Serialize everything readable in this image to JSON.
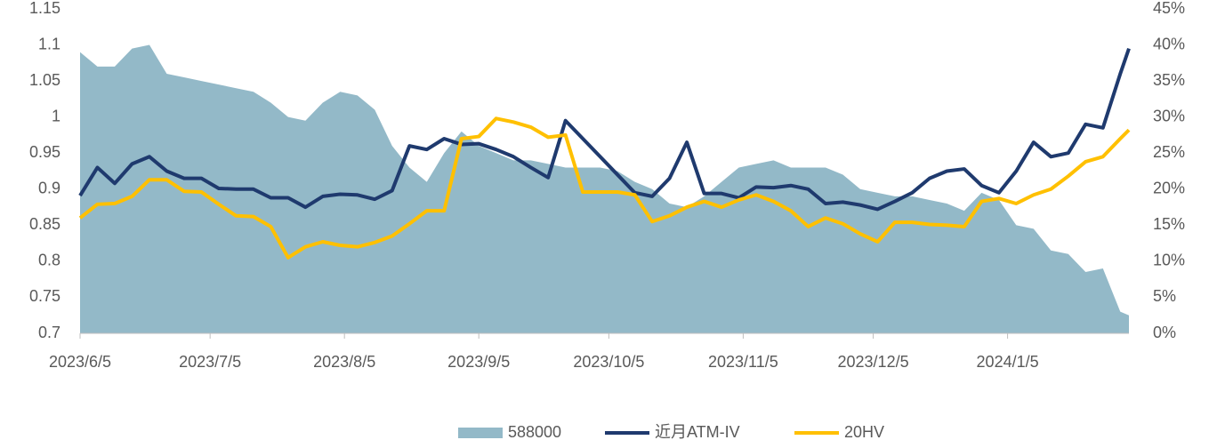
{
  "chart_data": {
    "type": "line",
    "x": [
      "2023/6/5",
      "2023/6/9",
      "2023/6/13",
      "2023/6/17",
      "2023/6/21",
      "2023/6/25",
      "2023/6/29",
      "2023/7/3",
      "2023/7/7",
      "2023/7/11",
      "2023/7/15",
      "2023/7/19",
      "2023/7/23",
      "2023/7/27",
      "2023/7/31",
      "2023/8/4",
      "2023/8/8",
      "2023/8/12",
      "2023/8/16",
      "2023/8/20",
      "2023/8/24",
      "2023/8/28",
      "2023/9/1",
      "2023/9/5",
      "2023/9/9",
      "2023/9/13",
      "2023/9/17",
      "2023/9/21",
      "2023/9/25",
      "2023/9/29",
      "2023/10/3",
      "2023/10/7",
      "2023/10/11",
      "2023/10/15",
      "2023/10/19",
      "2023/10/23",
      "2023/10/27",
      "2023/10/31",
      "2023/11/4",
      "2023/11/8",
      "2023/11/12",
      "2023/11/16",
      "2023/11/20",
      "2023/11/24",
      "2023/11/28",
      "2023/12/2",
      "2023/12/6",
      "2023/12/10",
      "2023/12/14",
      "2023/12/18",
      "2023/12/22",
      "2023/12/26",
      "2023/12/30",
      "2024/1/3",
      "2024/1/7",
      "2024/1/11",
      "2024/1/15",
      "2024/1/19",
      "2024/1/23",
      "2024/1/27",
      "2024/1/31",
      "2024/2/2"
    ],
    "series": [
      {
        "name": "588000",
        "type": "area",
        "axis": "y",
        "color": "#93b9c8",
        "values": [
          1.09,
          1.07,
          1.07,
          1.095,
          1.1,
          1.06,
          1.055,
          1.05,
          1.045,
          1.04,
          1.035,
          1.02,
          1.0,
          0.995,
          1.02,
          1.035,
          1.03,
          1.01,
          0.96,
          0.93,
          0.91,
          0.95,
          0.98,
          0.96,
          0.95,
          0.94,
          0.94,
          0.935,
          0.93,
          0.93,
          0.93,
          0.925,
          0.91,
          0.9,
          0.88,
          0.875,
          0.89,
          0.91,
          0.93,
          0.935,
          0.94,
          0.93,
          0.93,
          0.93,
          0.92,
          0.9,
          0.895,
          0.89,
          0.89,
          0.885,
          0.88,
          0.87,
          0.895,
          0.885,
          0.85,
          0.845,
          0.815,
          0.81,
          0.785,
          0.79,
          0.73,
          0.725
        ]
      },
      {
        "name": "近月ATM-IV",
        "type": "line",
        "axis": "y2",
        "color": "#1f3a6e",
        "values": [
          19.1,
          23,
          20.8,
          23.5,
          24.5,
          22.5,
          21.5,
          21.5,
          20.1,
          20,
          20,
          18.8,
          18.8,
          17.5,
          19,
          19.3,
          19.2,
          18.6,
          19.8,
          26,
          25.5,
          27,
          26.2,
          26.3,
          25.5,
          24.5,
          23,
          21.6,
          29.5,
          27,
          24.5,
          22,
          19.5,
          19,
          21.5,
          26.5,
          19.4,
          19.4,
          18.8,
          20.3,
          20.2,
          20.5,
          20,
          18,
          18.2,
          17.8,
          17.2,
          18.3,
          19.5,
          21.5,
          22.5,
          22.8,
          20.5,
          19.5,
          22.5,
          26.5,
          24.5,
          25,
          29,
          28.5,
          36,
          39.5
        ]
      },
      {
        "name": "20HV",
        "type": "line",
        "axis": "y2",
        "color": "#ffc000",
        "values": [
          16,
          17.9,
          18,
          19,
          21.3,
          21.3,
          19.7,
          19.6,
          17.9,
          16.3,
          16.2,
          14.8,
          10.5,
          12,
          12.7,
          12.2,
          12,
          12.6,
          13.5,
          15.2,
          17,
          17,
          27,
          27.3,
          29.8,
          29.3,
          28.6,
          27.2,
          27.5,
          19.6,
          19.6,
          19.6,
          19.2,
          15.5,
          16.3,
          17.5,
          18.3,
          17.5,
          18.5,
          19.2,
          18.3,
          17,
          14.8,
          16,
          15.2,
          13.8,
          12.7,
          15.4,
          15.4,
          15.1,
          15,
          14.8,
          18.3,
          18.7,
          18,
          19.2,
          20,
          21.8,
          23.8,
          24.5,
          27,
          28.2
        ]
      }
    ],
    "xlim": [
      "2023/6/5",
      "2024/2/2"
    ],
    "xticks": [
      "2023/6/5",
      "2023/7/5",
      "2023/8/5",
      "2023/9/5",
      "2023/10/5",
      "2023/11/5",
      "2023/12/5",
      "2024/1/5"
    ],
    "ylim": [
      0.7,
      1.15
    ],
    "yticks": [
      0.7,
      0.75,
      0.8,
      0.85,
      0.9,
      0.95,
      1,
      1.05,
      1.1,
      1.15
    ],
    "y2lim": [
      0,
      45
    ],
    "y2ticks": [
      {
        "value": 0,
        "label": "0%"
      },
      {
        "value": 5,
        "label": "5%"
      },
      {
        "value": 10,
        "label": "10%"
      },
      {
        "value": 15,
        "label": "15%"
      },
      {
        "value": 20,
        "label": "20%"
      },
      {
        "value": 25,
        "label": "25%"
      },
      {
        "value": 30,
        "label": "30%"
      },
      {
        "value": 35,
        "label": "35%"
      },
      {
        "value": 40,
        "label": "40%"
      },
      {
        "value": 45,
        "label": "45%"
      }
    ],
    "legend": "bottom"
  }
}
